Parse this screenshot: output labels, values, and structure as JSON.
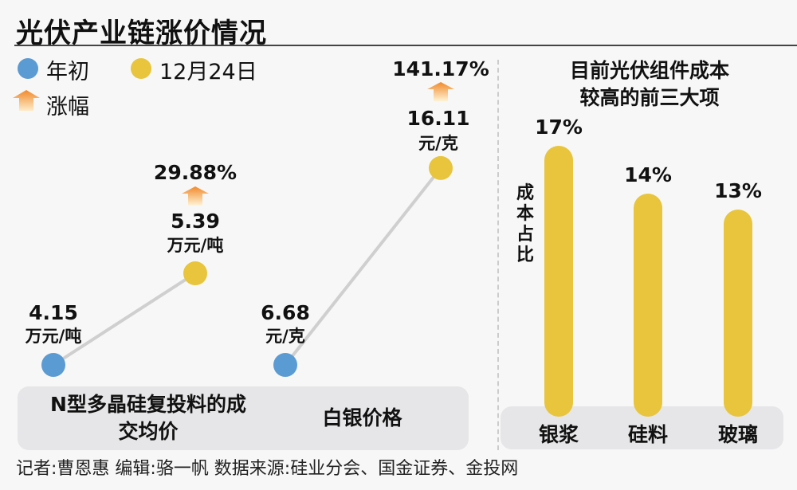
{
  "title": "光伏产业链涨价情况",
  "legend": {
    "start": "年初",
    "end": "12月24日",
    "rise": "涨幅"
  },
  "colors": {
    "start": "#5b9bd3",
    "end": "#e8c53c",
    "line": "#cfcfcf",
    "panel": "#e6e6e8",
    "arrow_top": "#f08a2a",
    "arrow_bottom": "#fff3d6"
  },
  "chart_data": [
    {
      "type": "line",
      "title": "N型多晶硅复投料的成交均价",
      "points": [
        {
          "label": "年初",
          "value": 4.15,
          "display": "4.15",
          "unit": "万元/吨"
        },
        {
          "label": "12月24日",
          "value": 5.39,
          "display": "5.39",
          "unit": "万元/吨"
        }
      ],
      "rise": "29.88%"
    },
    {
      "type": "line",
      "title": "白银价格",
      "points": [
        {
          "label": "年初",
          "value": 6.68,
          "display": "6.68",
          "unit": "元/克"
        },
        {
          "label": "12月24日",
          "value": 16.11,
          "display": "16.11",
          "unit": "元/克"
        }
      ],
      "rise": "141.17%"
    },
    {
      "type": "bar",
      "title": "目前光伏组件成本较高的前三大项",
      "ylabel": "成本占比",
      "categories": [
        "银浆",
        "硅料",
        "玻璃"
      ],
      "values": [
        17,
        14,
        13
      ],
      "labels": [
        "17%",
        "14%",
        "13%"
      ],
      "bar_color": "#e8c53c"
    }
  ],
  "footer": "记者:曹恩惠   编辑:骆一帆   数据来源:硅业分会、国金证券、金投网"
}
